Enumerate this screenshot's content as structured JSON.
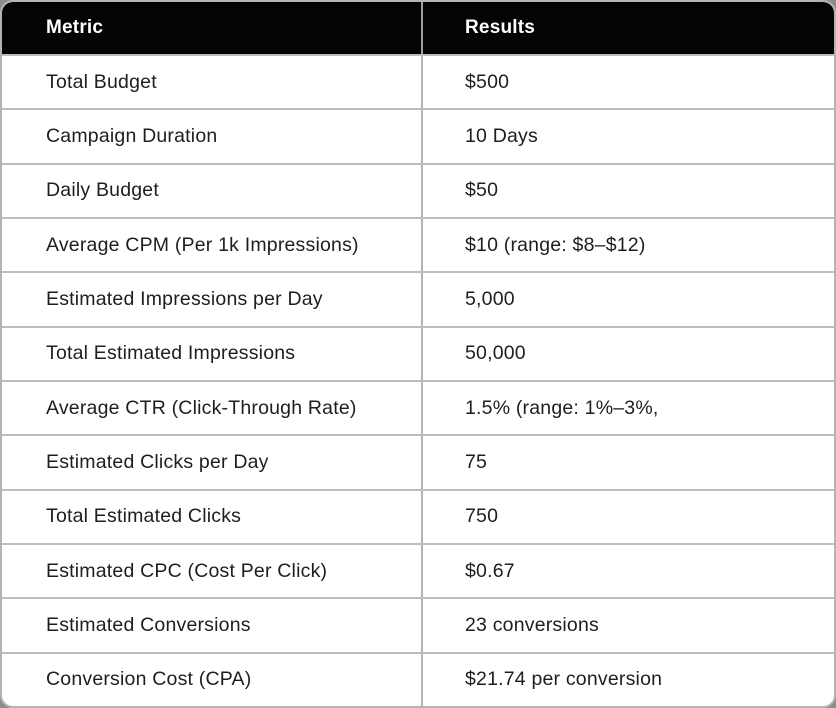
{
  "table": {
    "columns": [
      "Metric",
      "Results"
    ],
    "rows": [
      {
        "metric": "Total Budget",
        "result": "$500"
      },
      {
        "metric": "Campaign Duration",
        "result": "10 Days"
      },
      {
        "metric": "Daily Budget",
        "result": "$50"
      },
      {
        "metric": "Average CPM (Per 1k Impressions)",
        "result": "$10 (range: $8–$12)"
      },
      {
        "metric": "Estimated Impressions per Day",
        "result": "5,000"
      },
      {
        "metric": "Total Estimated Impressions",
        "result": "50,000"
      },
      {
        "metric": "Average CTR (Click-Through Rate)",
        "result": "1.5% (range: 1%–3%,"
      },
      {
        "metric": "Estimated Clicks per Day",
        "result": "75"
      },
      {
        "metric": "Total Estimated Clicks",
        "result": "750"
      },
      {
        "metric": "Estimated CPC (Cost Per Click)",
        "result": "$0.67"
      },
      {
        "metric": "Estimated Conversions",
        "result": "23 conversions"
      },
      {
        "metric": "Conversion Cost (CPA)",
        "result": "$21.74 per conversion"
      }
    ]
  },
  "chart_data": {
    "type": "table",
    "title": "",
    "columns": [
      "Metric",
      "Results"
    ],
    "rows": [
      [
        "Total Budget",
        "$500"
      ],
      [
        "Campaign Duration",
        "10 Days"
      ],
      [
        "Daily Budget",
        "$50"
      ],
      [
        "Average CPM (Per 1k Impressions)",
        "$10 (range: $8–$12)"
      ],
      [
        "Estimated Impressions per Day",
        "5,000"
      ],
      [
        "Total Estimated Impressions",
        "50,000"
      ],
      [
        "Average CTR (Click-Through Rate)",
        "1.5% (range: 1%–3%,"
      ],
      [
        "Estimated Clicks per Day",
        "75"
      ],
      [
        "Total Estimated Clicks",
        "750"
      ],
      [
        "Estimated CPC (Cost Per Click)",
        "$0.67"
      ],
      [
        "Estimated Conversions",
        "23 conversions"
      ],
      [
        "Conversion Cost (CPA)",
        "$21.74 per conversion"
      ]
    ]
  },
  "colors": {
    "header_bg": "#040404",
    "header_text": "#ffffff",
    "row_bg": "#ffffff",
    "body_text": "#1e1e1e",
    "divider": "#bdbdbd",
    "card_border": "#b3b3b3",
    "page_bg": "#8d8d8d"
  }
}
